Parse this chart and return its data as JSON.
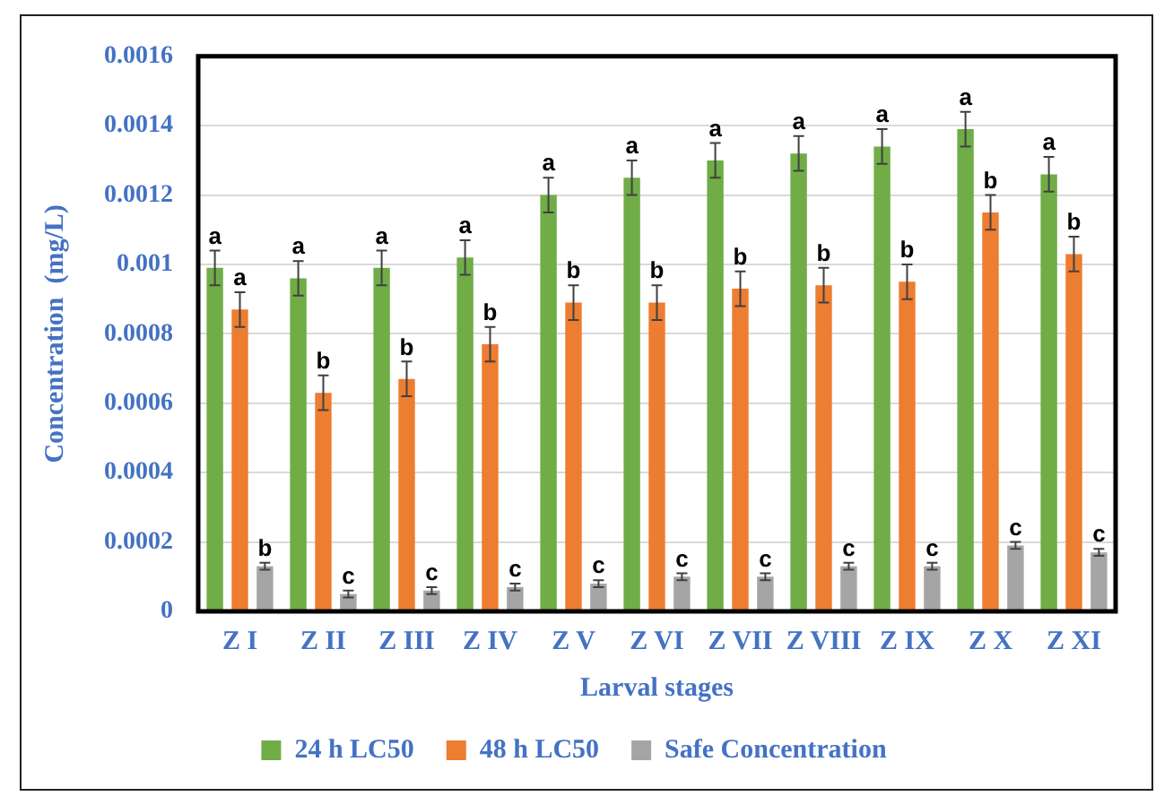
{
  "chart_data": {
    "type": "bar",
    "xlabel": "Larval stages",
    "ylabel": "Concentration  (mg/L)",
    "categories": [
      "Z I",
      "Z II",
      "Z III",
      "Z IV",
      "Z V",
      "Z VI",
      "Z VII",
      "Z VIII",
      "Z IX",
      "Z X",
      "Z XI"
    ],
    "series": [
      {
        "name": "24 h LC50",
        "color": "#70ad47",
        "values": [
          0.00099,
          0.00096,
          0.00099,
          0.00102,
          0.0012,
          0.00125,
          0.0013,
          0.00132,
          0.00134,
          0.00139,
          0.00126
        ],
        "errors": [
          5e-05,
          5e-05,
          5e-05,
          5e-05,
          5e-05,
          5e-05,
          5e-05,
          5e-05,
          5e-05,
          5e-05,
          5e-05
        ],
        "value_labels": [
          "a",
          "a",
          "a",
          "a",
          "a",
          "a",
          "a",
          "a",
          "a",
          "a",
          "a"
        ]
      },
      {
        "name": "48 h LC50",
        "color": "#ed7d31",
        "values": [
          0.00087,
          0.00063,
          0.00067,
          0.00077,
          0.00089,
          0.00089,
          0.00093,
          0.00094,
          0.00095,
          0.00115,
          0.00103
        ],
        "errors": [
          5e-05,
          5e-05,
          5e-05,
          5e-05,
          5e-05,
          5e-05,
          5e-05,
          5e-05,
          5e-05,
          5e-05,
          5e-05
        ],
        "value_labels": [
          "a",
          "b",
          "b",
          "b",
          "b",
          "b",
          "b",
          "b",
          "b",
          "b",
          "b"
        ]
      },
      {
        "name": "Safe Concentration",
        "color": "#a5a5a5",
        "values": [
          0.00013,
          5e-05,
          6e-05,
          7e-05,
          8e-05,
          0.0001,
          0.0001,
          0.00013,
          0.00013,
          0.00019,
          0.00017
        ],
        "errors": [
          1e-05,
          1e-05,
          1e-05,
          1e-05,
          1e-05,
          1e-05,
          1e-05,
          1e-05,
          1e-05,
          1e-05,
          1e-05
        ],
        "value_labels": [
          "b",
          "c",
          "c",
          "c",
          "c",
          "c",
          "c",
          "c",
          "c",
          "c",
          "c"
        ]
      }
    ],
    "ylim": [
      0,
      0.0016
    ],
    "yticks": [
      0,
      0.0002,
      0.0004,
      0.0006,
      0.0008,
      0.001,
      0.0012,
      0.0014,
      0.0016
    ],
    "grid": "y",
    "legend": "bottom"
  }
}
